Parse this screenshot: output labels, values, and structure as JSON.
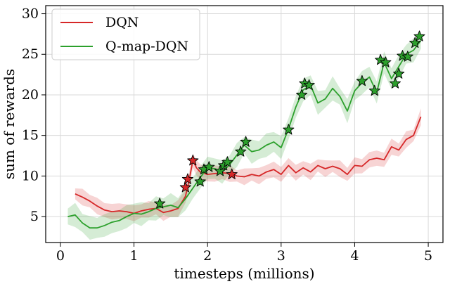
{
  "chart_data": {
    "type": "line",
    "xlabel": "timesteps (millions)",
    "ylabel": "sum of rewards",
    "xlim": [
      -0.2,
      5.2
    ],
    "ylim": [
      1.8,
      31.0
    ],
    "xticks": [
      "0",
      "1",
      "2",
      "3",
      "4",
      "5"
    ],
    "yticks": [
      "5",
      "10",
      "15",
      "20",
      "25",
      "30"
    ],
    "grid": true,
    "legend_position": "top-left",
    "series": [
      {
        "name": "DQN",
        "color": "#d62728",
        "x": [
          0.2,
          0.3,
          0.4,
          0.5,
          0.6,
          0.7,
          0.8,
          0.9,
          1.0,
          1.1,
          1.2,
          1.3,
          1.4,
          1.5,
          1.6,
          1.7,
          1.75,
          1.8,
          1.85,
          1.9,
          2.0,
          2.1,
          2.2,
          2.3,
          2.4,
          2.5,
          2.6,
          2.7,
          2.8,
          2.9,
          3.0,
          3.1,
          3.2,
          3.3,
          3.4,
          3.5,
          3.6,
          3.7,
          3.8,
          3.9,
          4.0,
          4.1,
          4.2,
          4.3,
          4.4,
          4.5,
          4.6,
          4.7,
          4.8,
          4.9
        ],
        "y": [
          7.8,
          7.4,
          6.9,
          6.3,
          5.8,
          5.6,
          5.7,
          5.6,
          5.4,
          5.7,
          5.9,
          6.0,
          5.5,
          5.7,
          6.0,
          7.5,
          9.5,
          11.9,
          11.0,
          10.5,
          10.2,
          10.3,
          10.4,
          10.3,
          10.0,
          9.9,
          10.2,
          10.0,
          10.5,
          10.8,
          10.2,
          11.3,
          10.4,
          11.0,
          10.5,
          11.3,
          10.9,
          11.2,
          10.9,
          10.2,
          11.3,
          11.2,
          12.0,
          12.2,
          12.0,
          13.6,
          13.2,
          14.5,
          15.0,
          17.3
        ],
        "markers": [
          [
            1.7,
            8.6
          ],
          [
            1.73,
            9.6
          ],
          [
            1.8,
            11.9
          ],
          [
            2.33,
            10.2
          ]
        ]
      },
      {
        "name": "Q-map-DQN",
        "color": "#2ca02c",
        "x": [
          0.1,
          0.2,
          0.3,
          0.4,
          0.5,
          0.6,
          0.7,
          0.8,
          0.9,
          1.0,
          1.1,
          1.2,
          1.3,
          1.4,
          1.5,
          1.6,
          1.7,
          1.8,
          1.9,
          2.0,
          2.1,
          2.2,
          2.3,
          2.4,
          2.5,
          2.6,
          2.7,
          2.8,
          2.9,
          3.0,
          3.1,
          3.2,
          3.3,
          3.4,
          3.5,
          3.6,
          3.7,
          3.8,
          3.9,
          4.0,
          4.1,
          4.2,
          4.3,
          4.4,
          4.5,
          4.6,
          4.7,
          4.8,
          4.9
        ],
        "y": [
          5.0,
          5.2,
          4.2,
          3.6,
          3.6,
          3.9,
          4.3,
          4.5,
          5.0,
          5.4,
          5.3,
          5.6,
          6.0,
          6.2,
          6.4,
          6.1,
          7.2,
          8.5,
          9.8,
          11.0,
          10.9,
          10.5,
          11.4,
          12.6,
          13.8,
          13.0,
          13.2,
          13.8,
          14.2,
          13.5,
          15.8,
          18.5,
          20.6,
          21.2,
          19.0,
          19.5,
          20.8,
          19.8,
          18.0,
          20.5,
          21.5,
          22.2,
          20.3,
          24.0,
          22.0,
          23.5,
          25.0,
          25.5,
          26.7
        ],
        "markers": [
          [
            1.35,
            6.6
          ],
          [
            1.9,
            9.3
          ],
          [
            1.95,
            10.8
          ],
          [
            2.02,
            11.1
          ],
          [
            2.17,
            10.6
          ],
          [
            2.22,
            11.3
          ],
          [
            2.27,
            11.7
          ],
          [
            2.45,
            13.0
          ],
          [
            2.52,
            14.2
          ],
          [
            3.1,
            15.7
          ],
          [
            3.28,
            20.0
          ],
          [
            3.32,
            21.4
          ],
          [
            3.38,
            21.2
          ],
          [
            4.1,
            21.7
          ],
          [
            4.27,
            20.5
          ],
          [
            4.35,
            24.3
          ],
          [
            4.42,
            24.0
          ],
          [
            4.55,
            21.4
          ],
          [
            4.6,
            22.6
          ],
          [
            4.65,
            24.8
          ],
          [
            4.72,
            24.7
          ],
          [
            4.82,
            26.4
          ],
          [
            4.88,
            27.2
          ]
        ]
      }
    ]
  }
}
